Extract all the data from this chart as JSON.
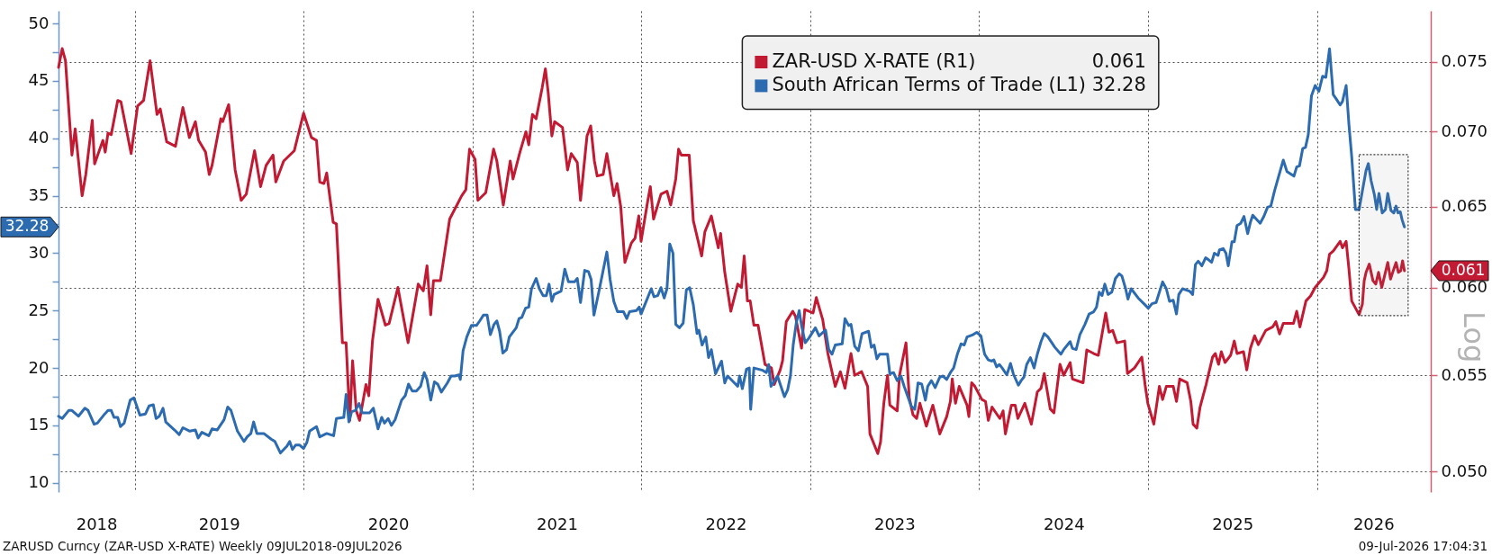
{
  "chart_data": {
    "type": "line",
    "legend": "top right",
    "grid": true,
    "log": "y2",
    "xlim": [
      "2018-07-20",
      "2026-09-04"
    ],
    "xticks": [
      {
        "value": "2018-10-10",
        "label": "2018"
      },
      {
        "value": "2019-01-01",
        "label": null
      },
      {
        "value": "2019-07-02",
        "label": "2019"
      },
      {
        "value": "2020-01-01",
        "label": null
      },
      {
        "value": "2020-07-02",
        "label": "2020"
      },
      {
        "value": "2021-01-01",
        "label": null
      },
      {
        "value": "2021-07-02",
        "label": "2021"
      },
      {
        "value": "2022-01-01",
        "label": null
      },
      {
        "value": "2022-07-02",
        "label": "2022"
      },
      {
        "value": "2023-01-01",
        "label": null
      },
      {
        "value": "2023-07-02",
        "label": "2023"
      },
      {
        "value": "2024-01-01",
        "label": null
      },
      {
        "value": "2024-07-02",
        "label": "2024"
      },
      {
        "value": "2025-01-01",
        "label": null
      },
      {
        "value": "2025-07-02",
        "label": "2025"
      },
      {
        "value": "2026-01-01",
        "label": null
      },
      {
        "value": "2026-05-03",
        "label": "2026"
      }
    ],
    "ylim": [
      9.2,
      51.1
    ],
    "yticks": [
      10,
      {
        "value": 12.5,
        "label": null
      },
      15,
      {
        "value": 17.5,
        "label": null
      },
      20,
      {
        "value": 22.5,
        "label": null
      },
      25,
      {
        "value": 27.5,
        "label": null
      },
      30,
      {
        "value": 32.5,
        "label": null
      },
      35,
      {
        "value": 37.5,
        "label": null
      },
      40,
      {
        "value": 42.5,
        "label": null
      },
      45,
      {
        "value": 47.5,
        "label": null
      },
      50
    ],
    "y2lim": [
      0.049,
      0.0789
    ],
    "y2ticks": [
      {
        "value": 0.05,
        "label": "0.050"
      },
      0.055,
      {
        "value": 0.06,
        "label": "0.060"
      },
      0.065,
      {
        "value": 0.07,
        "label": "0.070"
      },
      0.075
    ],
    "y2label": "Log",
    "bands": [
      {
        "axis": "x",
        "from": "2026-04-02",
        "to": "2026-07-17"
      }
    ],
    "annotations": [
      "0.061",
      "32.28",
      "ZARUSD Curncy (ZAR-USD X-RATE) Weekly 09JUL2018-09JUL2026",
      "09-Jul-2026 17:04:31"
    ],
    "series": [
      {
        "name": "ZAR-USD X-RATE (R1)",
        "color": "#c21a32",
        "axis": "y2",
        "x": [
          "2018-07-20",
          "2018-07-28",
          "2018-08-04",
          "2018-08-18",
          "2018-08-25",
          "2018-09-09",
          "2018-09-17",
          "2018-10-01",
          "2018-10-06",
          "2018-10-24",
          "2018-10-29",
          "2018-11-04",
          "2018-11-11",
          "2018-11-25",
          "2018-12-02",
          "2018-12-24",
          "2019-01-07",
          "2019-01-20",
          "2019-02-03",
          "2019-02-18",
          "2019-02-25",
          "2019-03-11",
          "2019-03-30",
          "2019-04-15",
          "2019-04-29",
          "2019-05-12",
          "2019-05-19",
          "2019-06-03",
          "2019-06-11",
          "2019-06-17",
          "2019-07-06",
          "2019-07-10",
          "2019-07-23",
          "2019-08-06",
          "2019-08-19",
          "2019-08-30",
          "2019-09-17",
          "2019-09-30",
          "2019-10-12",
          "2019-10-27",
          "2019-11-02",
          "2019-11-19",
          "2019-12-12",
          "2020-01-01",
          "2020-01-18",
          "2020-01-29",
          "2020-02-05",
          "2020-02-14",
          "2020-02-20",
          "2020-03-05",
          "2020-03-12",
          "2020-03-25",
          "2020-04-02",
          "2020-04-10",
          "2020-04-16",
          "2020-04-24",
          "2020-05-01",
          "2020-05-15",
          "2020-05-21",
          "2020-05-29",
          "2020-06-10",
          "2020-06-26",
          "2020-07-04",
          "2020-07-23",
          "2020-08-14",
          "2020-09-05",
          "2020-09-16",
          "2020-09-24",
          "2020-10-02",
          "2020-10-08",
          "2020-10-23",
          "2020-11-12",
          "2020-12-08",
          "2020-12-17",
          "2020-12-25",
          "2021-01-06",
          "2021-01-12",
          "2021-01-29",
          "2021-02-15",
          "2021-02-22",
          "2021-03-08",
          "2021-03-23",
          "2021-03-29",
          "2021-04-13",
          "2021-04-26",
          "2021-05-02",
          "2021-05-10",
          "2021-05-18",
          "2021-05-31",
          "2021-06-07",
          "2021-06-13",
          "2021-06-21",
          "2021-06-27",
          "2021-07-14",
          "2021-07-25",
          "2021-08-02",
          "2021-08-15",
          "2021-08-22",
          "2021-09-05",
          "2021-09-13",
          "2021-09-21",
          "2021-09-27",
          "2021-10-10",
          "2021-10-18",
          "2021-11-02",
          "2021-11-09",
          "2021-11-17",
          "2021-11-26",
          "2021-12-10",
          "2021-12-18",
          "2021-12-26",
          "2021-12-31",
          "2022-01-14",
          "2022-01-20",
          "2022-01-27",
          "2022-02-12",
          "2022-02-25",
          "2022-03-05",
          "2022-03-16",
          "2022-03-22",
          "2022-03-28",
          "2022-04-14",
          "2022-04-23",
          "2022-05-11",
          "2022-05-18",
          "2022-06-01",
          "2022-06-16",
          "2022-06-21",
          "2022-06-30",
          "2022-07-13",
          "2022-07-28",
          "2022-08-05",
          "2022-08-11",
          "2022-08-18",
          "2022-08-24",
          "2022-09-01",
          "2022-09-10",
          "2022-09-25",
          "2022-10-09",
          "2022-10-15",
          "2022-10-28",
          "2022-11-02",
          "2022-11-10",
          "2022-11-24",
          "2022-11-30",
          "2022-12-13",
          "2022-12-20",
          "2023-01-07",
          "2023-01-14",
          "2023-01-28",
          "2023-02-08",
          "2023-02-24",
          "2023-03-07",
          "2023-03-17",
          "2023-03-30",
          "2023-04-07",
          "2023-04-22",
          "2023-05-05",
          "2023-05-10",
          "2023-05-27",
          "2023-06-02",
          "2023-06-09",
          "2023-06-17",
          "2023-06-22",
          "2023-07-08",
          "2023-07-13",
          "2023-07-27",
          "2023-08-03",
          "2023-08-11",
          "2023-08-19",
          "2023-08-26",
          "2023-09-09",
          "2023-09-23",
          "2023-10-08",
          "2023-10-23",
          "2023-10-31",
          "2023-11-04",
          "2023-11-11",
          "2023-11-19",
          "2023-12-06",
          "2023-12-10",
          "2023-12-16",
          "2023-12-23",
          "2024-01-07",
          "2024-01-15",
          "2024-01-21",
          "2024-01-29",
          "2024-02-15",
          "2024-02-22",
          "2024-02-27",
          "2024-03-11",
          "2024-03-19",
          "2024-03-25",
          "2024-04-09",
          "2024-04-23",
          "2024-05-06",
          "2024-05-14",
          "2024-05-21",
          "2024-06-03",
          "2024-06-11",
          "2024-06-24",
          "2024-07-02",
          "2024-07-16",
          "2024-07-21",
          "2024-08-13",
          "2024-08-21",
          "2024-09-05",
          "2024-09-15",
          "2024-10-01",
          "2024-10-08",
          "2024-10-16",
          "2024-10-25",
          "2024-11-11",
          "2024-11-17",
          "2024-12-02",
          "2024-12-18",
          "2024-12-25",
          "2024-12-31",
          "2025-01-13",
          "2025-01-25",
          "2025-02-01",
          "2025-02-09",
          "2025-02-24",
          "2025-03-03",
          "2025-03-10",
          "2025-03-26",
          "2025-04-03",
          "2025-04-08",
          "2025-04-16",
          "2025-04-23",
          "2025-05-06",
          "2025-05-20",
          "2025-05-26",
          "2025-06-02",
          "2025-06-08",
          "2025-06-16",
          "2025-06-28",
          "2025-07-06",
          "2025-07-12",
          "2025-07-26",
          "2025-08-02",
          "2025-08-10",
          "2025-08-19",
          "2025-08-27",
          "2025-09-12",
          "2025-09-27",
          "2025-10-04",
          "2025-10-12",
          "2025-10-20",
          "2025-11-11",
          "2025-11-18",
          "2025-11-25",
          "2025-12-08",
          "2025-12-18",
          "2025-12-28",
          "2026-01-15",
          "2026-01-22",
          "2026-01-28",
          "2026-02-05",
          "2026-02-20",
          "2026-02-25",
          "2026-03-05",
          "2026-03-11",
          "2026-03-17",
          "2026-04-02",
          "2026-04-09",
          "2026-04-13",
          "2026-04-17",
          "2026-04-24",
          "2026-05-02",
          "2026-05-08",
          "2026-05-14",
          "2026-05-21",
          "2026-06-03",
          "2026-06-09",
          "2026-06-16",
          "2026-06-21",
          "2026-06-26",
          "2026-07-01",
          "2026-07-05",
          "2026-07-09"
        ],
        "values": [
          0.0746,
          0.076,
          0.0751,
          0.0684,
          0.0702,
          0.0657,
          0.0671,
          0.0708,
          0.0678,
          0.0694,
          0.0686,
          0.0699,
          0.0698,
          0.0722,
          0.0721,
          0.0685,
          0.0718,
          0.0722,
          0.0751,
          0.0712,
          0.0716,
          0.0693,
          0.069,
          0.0717,
          0.0696,
          0.0707,
          0.0694,
          0.0686,
          0.0671,
          0.0677,
          0.0709,
          0.0707,
          0.0719,
          0.0674,
          0.0654,
          0.0658,
          0.0687,
          0.0663,
          0.0677,
          0.0684,
          0.0666,
          0.068,
          0.0687,
          0.0713,
          0.0696,
          0.0694,
          0.0666,
          0.0665,
          0.0672,
          0.064,
          0.0639,
          0.0568,
          0.0568,
          0.0526,
          0.0558,
          0.0531,
          0.0526,
          0.0545,
          0.0539,
          0.0569,
          0.0593,
          0.0578,
          0.0579,
          0.06,
          0.0568,
          0.0602,
          0.0598,
          0.0613,
          0.0584,
          0.0604,
          0.0604,
          0.0642,
          0.0657,
          0.0661,
          0.0688,
          0.0681,
          0.0654,
          0.0659,
          0.0688,
          0.068,
          0.0651,
          0.068,
          0.0668,
          0.0686,
          0.07,
          0.0691,
          0.0712,
          0.0709,
          0.0731,
          0.0745,
          0.0728,
          0.0697,
          0.0707,
          0.0703,
          0.0674,
          0.0685,
          0.0679,
          0.0654,
          0.0697,
          0.0704,
          0.068,
          0.067,
          0.0671,
          0.0685,
          0.0657,
          0.0665,
          0.065,
          0.0615,
          0.0627,
          0.063,
          0.0644,
          0.0628,
          0.0653,
          0.0663,
          0.0642,
          0.0658,
          0.066,
          0.0651,
          0.0668,
          0.0688,
          0.0684,
          0.0684,
          0.0641,
          0.0619,
          0.0634,
          0.0644,
          0.0624,
          0.0633,
          0.0609,
          0.0586,
          0.0602,
          0.06,
          0.0619,
          0.0592,
          0.0592,
          0.0578,
          0.0578,
          0.0556,
          0.0554,
          0.0545,
          0.0553,
          0.0558,
          0.058,
          0.0586,
          0.0583,
          0.0565,
          0.0587,
          0.0585,
          0.0594,
          0.0581,
          0.0562,
          0.0544,
          0.0552,
          0.0543,
          0.0562,
          0.055,
          0.0552,
          0.0544,
          0.0519,
          0.0509,
          0.0515,
          0.0535,
          0.055,
          0.0534,
          0.0531,
          0.055,
          0.0568,
          0.0538,
          0.0529,
          0.0527,
          0.0535,
          0.0523,
          0.0534,
          0.0519,
          0.0528,
          0.0536,
          0.0548,
          0.0535,
          0.0544,
          0.0534,
          0.0528,
          0.0546,
          0.0544,
          0.0537,
          0.0536,
          0.0526,
          0.0533,
          0.0527,
          0.0531,
          0.0519,
          0.0534,
          0.0534,
          0.0527,
          0.0535,
          0.0524,
          0.0541,
          0.0543,
          0.0551,
          0.0532,
          0.053,
          0.0556,
          0.055,
          0.0557,
          0.0548,
          0.0546,
          0.0564,
          0.0562,
          0.0561,
          0.0585,
          0.0574,
          0.0575,
          0.0568,
          0.0569,
          0.0551,
          0.0554,
          0.056,
          0.0545,
          0.0535,
          0.0524,
          0.0544,
          0.0537,
          0.0544,
          0.0544,
          0.0536,
          0.0548,
          0.0546,
          0.0536,
          0.0524,
          0.0522,
          0.0533,
          0.0545,
          0.056,
          0.0562,
          0.0556,
          0.0563,
          0.0557,
          0.0561,
          0.0569,
          0.0562,
          0.0563,
          0.0553,
          0.0565,
          0.0572,
          0.0567,
          0.0575,
          0.0577,
          0.058,
          0.0573,
          0.0579,
          0.0579,
          0.0586,
          0.0577,
          0.0592,
          0.0595,
          0.06,
          0.0606,
          0.061,
          0.062,
          0.0622,
          0.0628,
          0.0624,
          0.0628,
          0.0611,
          0.0592,
          0.0584,
          0.059,
          0.0604,
          0.0609,
          0.0614,
          0.0604,
          0.0602,
          0.0609,
          0.06,
          0.0615,
          0.0605,
          0.0611,
          0.0615,
          0.0609,
          0.061,
          0.0616,
          0.061
        ]
      },
      {
        "name": "South African Terms of Trade (L1)",
        "color": "#2c6bb0",
        "x": [
          "2018-07-20",
          "2018-07-28",
          "2018-08-11",
          "2018-08-18",
          "2018-09-01",
          "2018-09-15",
          "2018-09-22",
          "2018-10-05",
          "2018-10-12",
          "2018-10-28",
          "2018-11-04",
          "2018-11-11",
          "2018-11-17",
          "2018-11-25",
          "2018-12-01",
          "2018-12-09",
          "2018-12-22",
          "2018-12-30",
          "2019-01-12",
          "2019-01-24",
          "2019-02-01",
          "2019-02-10",
          "2019-02-16",
          "2019-02-23",
          "2019-03-03",
          "2019-03-09",
          "2019-03-28",
          "2019-04-07",
          "2019-04-15",
          "2019-04-30",
          "2019-05-12",
          "2019-05-18",
          "2019-05-26",
          "2019-06-10",
          "2019-06-17",
          "2019-06-28",
          "2019-07-13",
          "2019-07-21",
          "2019-07-28",
          "2019-08-11",
          "2019-08-25",
          "2019-09-01",
          "2019-09-09",
          "2019-09-15",
          "2019-09-22",
          "2019-10-07",
          "2019-10-23",
          "2019-10-31",
          "2019-11-12",
          "2019-11-26",
          "2019-12-02",
          "2019-12-08",
          "2019-12-15",
          "2019-12-23",
          "2020-01-01",
          "2020-01-08",
          "2020-01-14",
          "2020-01-29",
          "2020-02-05",
          "2020-02-20",
          "2020-03-06",
          "2020-03-12",
          "2020-03-28",
          "2020-04-02",
          "2020-04-08",
          "2020-04-14",
          "2020-04-22",
          "2020-04-30",
          "2020-05-07",
          "2020-05-23",
          "2020-05-31",
          "2020-06-10",
          "2020-06-18",
          "2020-06-24",
          "2020-07-02",
          "2020-07-09",
          "2020-07-17",
          "2020-07-31",
          "2020-08-08",
          "2020-08-15",
          "2020-08-23",
          "2020-09-01",
          "2020-09-10",
          "2020-09-18",
          "2020-09-24",
          "2020-10-02",
          "2020-10-10",
          "2020-10-17",
          "2020-10-25",
          "2020-11-07",
          "2020-11-15",
          "2020-11-23",
          "2020-12-02",
          "2020-12-05",
          "2020-12-11",
          "2020-12-19",
          "2020-12-29",
          "2021-01-09",
          "2021-01-16",
          "2021-01-24",
          "2021-02-01",
          "2021-02-08",
          "2021-02-16",
          "2021-02-22",
          "2021-02-28",
          "2021-03-07",
          "2021-03-15",
          "2021-03-21",
          "2021-04-05",
          "2021-04-11",
          "2021-04-17",
          "2021-04-25",
          "2021-05-02",
          "2021-05-08",
          "2021-05-18",
          "2021-05-25",
          "2021-06-02",
          "2021-06-09",
          "2021-06-15",
          "2021-06-21",
          "2021-06-26",
          "2021-07-11",
          "2021-07-19",
          "2021-07-27",
          "2021-08-09",
          "2021-08-15",
          "2021-08-22",
          "2021-08-31",
          "2021-09-08",
          "2021-09-14",
          "2021-09-20",
          "2021-10-01",
          "2021-10-18",
          "2021-10-25",
          "2021-11-02",
          "2021-11-10",
          "2021-11-23",
          "2021-11-30",
          "2021-12-06",
          "2021-12-21",
          "2021-12-27",
          "2021-12-31",
          "2022-01-08",
          "2022-01-22",
          "2022-01-28",
          "2022-02-05",
          "2022-02-12",
          "2022-02-19",
          "2022-02-25",
          "2022-03-03",
          "2022-03-10",
          "2022-03-16",
          "2022-03-24",
          "2022-04-01",
          "2022-04-08",
          "2022-04-15",
          "2022-04-23",
          "2022-05-01",
          "2022-05-05",
          "2022-05-12",
          "2022-05-20",
          "2022-05-26",
          "2022-06-01",
          "2022-06-10",
          "2022-06-23",
          "2022-06-30",
          "2022-07-06",
          "2022-07-21",
          "2022-07-28",
          "2022-08-01",
          "2022-08-07",
          "2022-08-16",
          "2022-08-22",
          "2022-08-25",
          "2022-09-01",
          "2022-09-20",
          "2022-09-28",
          "2022-10-03",
          "2022-10-08",
          "2022-10-16",
          "2022-10-22",
          "2022-11-06",
          "2022-11-13",
          "2022-11-19",
          "2022-11-25",
          "2022-12-02",
          "2022-12-08",
          "2022-12-13",
          "2022-12-21",
          "2022-12-29",
          "2023-01-12",
          "2023-01-20",
          "2023-02-03",
          "2023-02-10",
          "2023-02-17",
          "2023-02-24",
          "2023-03-11",
          "2023-03-17",
          "2023-03-25",
          "2023-03-30",
          "2023-04-07",
          "2023-04-15",
          "2023-04-23",
          "2023-05-07",
          "2023-05-13",
          "2023-05-19",
          "2023-05-25",
          "2023-05-31",
          "2023-06-17",
          "2023-06-22",
          "2023-06-30",
          "2023-07-08",
          "2023-07-16",
          "2023-07-23",
          "2023-07-31",
          "2023-08-07",
          "2023-08-15",
          "2023-08-22",
          "2023-08-30",
          "2023-09-07",
          "2023-09-12",
          "2023-09-20",
          "2023-09-28",
          "2023-10-08",
          "2023-10-15",
          "2023-10-23",
          "2023-10-31",
          "2023-11-07",
          "2023-11-15",
          "2023-11-23",
          "2023-11-30",
          "2023-12-06",
          "2023-12-19",
          "2023-12-27",
          "2024-01-05",
          "2024-01-13",
          "2024-01-21",
          "2024-01-28",
          "2024-02-02",
          "2024-02-08",
          "2024-02-14",
          "2024-02-20",
          "2024-03-01",
          "2024-03-09",
          "2024-03-15",
          "2024-03-26",
          "2024-04-01",
          "2024-04-07",
          "2024-04-13",
          "2024-04-21",
          "2024-04-29",
          "2024-05-06",
          "2024-05-14",
          "2024-05-21",
          "2024-05-29",
          "2024-06-13",
          "2024-06-26",
          "2024-07-02",
          "2024-07-16",
          "2024-07-21",
          "2024-07-29",
          "2024-08-06",
          "2024-08-17",
          "2024-08-26",
          "2024-09-05",
          "2024-09-11",
          "2024-09-17",
          "2024-09-23",
          "2024-09-29",
          "2024-10-06",
          "2024-10-14",
          "2024-10-22",
          "2024-10-30",
          "2024-11-05",
          "2024-11-13",
          "2024-11-18",
          "2024-11-25",
          "2024-12-10",
          "2024-12-25",
          "2025-01-01",
          "2025-01-09",
          "2025-01-18",
          "2025-02-01",
          "2025-02-09",
          "2025-02-16",
          "2025-02-24",
          "2025-03-03",
          "2025-03-08",
          "2025-03-16",
          "2025-03-31",
          "2025-04-07",
          "2025-04-13",
          "2025-04-19",
          "2025-04-27",
          "2025-05-05",
          "2025-05-12",
          "2025-05-18",
          "2025-05-24",
          "2025-06-01",
          "2025-06-04",
          "2025-06-12",
          "2025-06-18",
          "2025-06-23",
          "2025-07-01",
          "2025-07-06",
          "2025-07-12",
          "2025-07-20",
          "2025-07-27",
          "2025-08-04",
          "2025-08-10",
          "2025-08-15",
          "2025-08-31",
          "2025-09-08",
          "2025-09-16",
          "2025-09-23",
          "2025-10-01",
          "2025-10-08",
          "2025-10-20",
          "2025-10-28",
          "2025-11-12",
          "2025-11-18",
          "2025-11-24",
          "2025-12-01",
          "2025-12-07",
          "2025-12-13",
          "2025-12-20",
          "2025-12-28",
          "2026-01-05",
          "2026-01-13",
          "2026-01-20",
          "2026-01-28",
          "2026-02-05",
          "2026-02-12",
          "2026-02-20",
          "2026-02-25",
          "2026-03-05",
          "2026-03-11",
          "2026-03-17",
          "2026-03-25",
          "2026-04-02",
          "2026-04-09",
          "2026-04-17",
          "2026-04-22",
          "2026-04-28",
          "2026-05-05",
          "2026-05-10",
          "2026-05-15",
          "2026-05-22",
          "2026-05-29",
          "2026-06-03",
          "2026-06-10",
          "2026-06-16",
          "2026-06-21",
          "2026-06-25",
          "2026-06-30",
          "2026-07-04",
          "2026-07-09"
        ],
        "values": [
          15.8,
          15.6,
          16.3,
          16.3,
          15.8,
          16.5,
          16.3,
          15.1,
          15.2,
          16.0,
          16.3,
          16.3,
          15.7,
          15.7,
          14.9,
          15.2,
          17.2,
          17.4,
          15.9,
          16.0,
          16.7,
          16.8,
          15.6,
          15.8,
          16.5,
          15.3,
          14.6,
          14.2,
          14.8,
          14.5,
          14.6,
          13.9,
          14.4,
          14.1,
          14.7,
          14.6,
          15.5,
          16.6,
          16.3,
          14.5,
          13.6,
          14.0,
          14.3,
          15.3,
          14.3,
          14.3,
          13.8,
          13.6,
          12.6,
          13.2,
          13.6,
          12.9,
          13.3,
          13.3,
          13.0,
          13.5,
          14.5,
          14.9,
          14.0,
          14.3,
          14.1,
          15.6,
          15.7,
          17.7,
          15.3,
          16.2,
          16.3,
          16.9,
          16.1,
          16.1,
          16.5,
          14.7,
          15.7,
          15.2,
          15.6,
          15.0,
          15.5,
          17.2,
          17.6,
          18.6,
          18.0,
          18.0,
          18.4,
          19.6,
          19.0,
          17.2,
          18.8,
          18.6,
          17.9,
          18.7,
          19.3,
          19.3,
          19.4,
          19.0,
          21.5,
          22.7,
          23.7,
          23.7,
          24.1,
          24.6,
          24.6,
          22.9,
          23.8,
          24.1,
          23.2,
          21.3,
          21.6,
          22.7,
          23.5,
          24.3,
          24.4,
          25.2,
          25.3,
          26.9,
          27.8,
          26.9,
          26.3,
          26.3,
          27.3,
          25.8,
          26.4,
          26.7,
          28.6,
          27.5,
          27.5,
          27.8,
          25.7,
          28.5,
          28.4,
          27.7,
          24.6,
          26.7,
          30.1,
          27.7,
          25.8,
          24.9,
          24.9,
          24.3,
          24.9,
          25.0,
          25.3,
          24.7,
          25.5,
          26.9,
          26.2,
          26.3,
          27.0,
          26.1,
          26.9,
          30.8,
          30.0,
          23.8,
          23.5,
          23.9,
          26.8,
          27.0,
          25.5,
          23.0,
          23.3,
          22.0,
          22.7,
          20.9,
          21.6,
          19.5,
          20.6,
          18.7,
          19.3,
          18.7,
          18.4,
          19.3,
          18.2,
          19.9,
          20.0,
          16.4,
          20.0,
          19.8,
          19.6,
          20.3,
          18.4,
          18.9,
          19.3,
          17.5,
          18.1,
          19.3,
          22.0,
          24.0,
          25.0,
          23.7,
          22.2,
          22.6,
          23.5,
          22.8,
          23.3,
          21.6,
          21.2,
          22.0,
          22.1,
          24.3,
          23.7,
          23.8,
          21.9,
          21.5,
          23.0,
          23.2,
          21.8,
          22.0,
          20.8,
          21.2,
          21.2,
          19.5,
          19.6,
          18.9,
          19.3,
          18.4,
          17.5,
          16.7,
          16.4,
          18.7,
          18.6,
          17.2,
          18.4,
          18.9,
          18.3,
          19.2,
          19.3,
          19.0,
          19.6,
          20.0,
          21.2,
          22.1,
          22.0,
          22.7,
          22.9,
          23.1,
          22.8,
          21.2,
          20.7,
          20.6,
          20.7,
          20.1,
          20.3,
          20.0,
          19.4,
          20.4,
          19.5,
          18.5,
          18.9,
          19.2,
          20.3,
          20.9,
          20.0,
          21.2,
          22.3,
          23.0,
          22.7,
          21.8,
          21.2,
          21.6,
          22.3,
          21.7,
          21.6,
          22.9,
          23.8,
          24.7,
          24.9,
          25.3,
          26.6,
          26.3,
          27.3,
          26.4,
          26.6,
          27.8,
          28.2,
          28.0,
          26.9,
          26.0,
          26.9,
          26.1,
          25.5,
          25.2,
          25.6,
          25.7,
          27.5,
          26.9,
          25.8,
          25.9,
          24.7,
          26.4,
          26.9,
          26.7,
          26.4,
          29.0,
          29.3,
          28.9,
          29.6,
          29.4,
          29.2,
          30.0,
          29.8,
          30.3,
          30.4,
          30.0,
          28.9,
          31.0,
          31.0,
          32.4,
          32.6,
          33.2,
          31.7,
          32.7,
          33.3,
          32.6,
          33.2,
          34.0,
          34.1,
          35.4,
          36.4,
          38.1,
          37.1,
          36.7,
          37.5,
          37.6,
          39.1,
          39.2,
          40.3,
          43.7,
          44.6,
          44.1,
          45.4,
          45.3,
          47.8,
          43.8,
          43.4,
          42.9,
          43.2,
          44.6,
          41.2,
          38.4,
          33.8,
          33.8,
          35.4,
          37.2,
          37.8,
          36.3,
          35.1,
          33.8,
          35.2,
          33.5,
          33.8,
          35.2,
          33.7,
          33.5,
          34.1,
          33.5,
          33.6,
          32.9,
          32.28
        ]
      }
    ]
  }
}
